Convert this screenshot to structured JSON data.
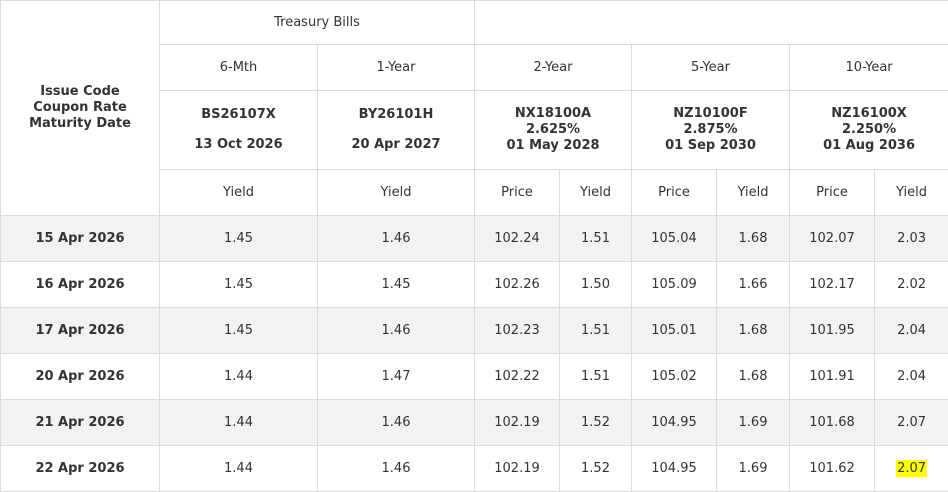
{
  "header": {
    "group_label": "Treasury Bills",
    "tenors": [
      "6-Mth",
      "1-Year",
      "2-Year",
      "5-Year",
      "10-Year"
    ],
    "row_label_lines": [
      "Issue Code",
      "Coupon Rate",
      "Maturity Date"
    ],
    "bonds": [
      {
        "code": "BS26107X",
        "coupon": "",
        "maturity": "13 Oct 2026"
      },
      {
        "code": "BY26101H",
        "coupon": "",
        "maturity": "20 Apr 2027"
      },
      {
        "code": "NX18100A",
        "coupon": "2.625%",
        "maturity": "01 May 2028"
      },
      {
        "code": "NZ10100F",
        "coupon": "2.875%",
        "maturity": "01 Sep 2030"
      },
      {
        "code": "NZ16100X",
        "coupon": "2.250%",
        "maturity": "01 Aug 2036"
      }
    ],
    "yield_label": "Yield",
    "price_label": "Price"
  },
  "rows": [
    {
      "date": "15 Apr 2026",
      "values": [
        "1.45",
        "1.46",
        "102.24",
        "1.51",
        "105.04",
        "1.68",
        "102.07",
        "2.03"
      ]
    },
    {
      "date": "16 Apr 2026",
      "values": [
        "1.45",
        "1.45",
        "102.26",
        "1.50",
        "105.09",
        "1.66",
        "102.17",
        "2.02"
      ]
    },
    {
      "date": "17 Apr 2026",
      "values": [
        "1.45",
        "1.46",
        "102.23",
        "1.51",
        "105.01",
        "1.68",
        "101.95",
        "2.04"
      ]
    },
    {
      "date": "20 Apr 2026",
      "values": [
        "1.44",
        "1.47",
        "102.22",
        "1.51",
        "105.02",
        "1.68",
        "101.91",
        "2.04"
      ]
    },
    {
      "date": "21 Apr 2026",
      "values": [
        "1.44",
        "1.46",
        "102.19",
        "1.52",
        "104.95",
        "1.69",
        "101.68",
        "2.07"
      ]
    },
    {
      "date": "22 Apr 2026",
      "values": [
        "1.44",
        "1.46",
        "102.19",
        "1.52",
        "104.95",
        "1.69",
        "101.62",
        "2.07"
      ]
    }
  ],
  "highlight_color": "#ffff00"
}
